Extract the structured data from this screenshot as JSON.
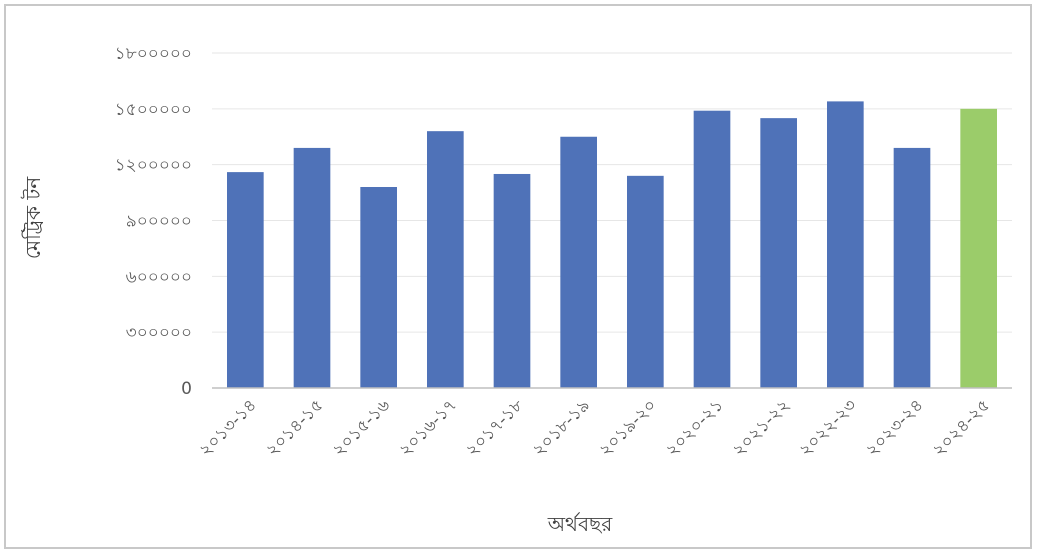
{
  "chart_data": {
    "type": "bar",
    "title": "",
    "xlabel": "অর্থবছর",
    "ylabel": "মেট্রিক টন",
    "ylim": [
      0,
      1800000
    ],
    "yticks": [
      "0",
      "৩০০০০০",
      "৬০০০০০",
      "৯০০০০০",
      "১২০০০০০",
      "১৫০০০০০",
      "১৮০০০০০"
    ],
    "ytick_values": [
      0,
      300000,
      600000,
      900000,
      1200000,
      1500000,
      1800000
    ],
    "categories": [
      "২০১৩-১৪",
      "২০১৪-১৫",
      "২০১৫-১৬",
      "২০১৬-১৭",
      "২০১৭-১৮",
      "২০১৮-১৯",
      "২০১৯-২০",
      "২০২০-২১",
      "২০২১-২২",
      "২০২২-২৩",
      "২০২৩-২৪",
      "২০২৪-২৫"
    ],
    "values": [
      1160000,
      1290000,
      1080000,
      1380000,
      1150000,
      1350000,
      1140000,
      1490000,
      1450000,
      1540000,
      1290000,
      1500000
    ],
    "bar_colors": [
      "#4f72b8",
      "#4f72b8",
      "#4f72b8",
      "#4f72b8",
      "#4f72b8",
      "#4f72b8",
      "#4f72b8",
      "#4f72b8",
      "#4f72b8",
      "#4f72b8",
      "#4f72b8",
      "#9bcc6a"
    ],
    "grid": true,
    "gridline_color": "#e6e6e6",
    "axis_color": "#bfbfbf"
  }
}
